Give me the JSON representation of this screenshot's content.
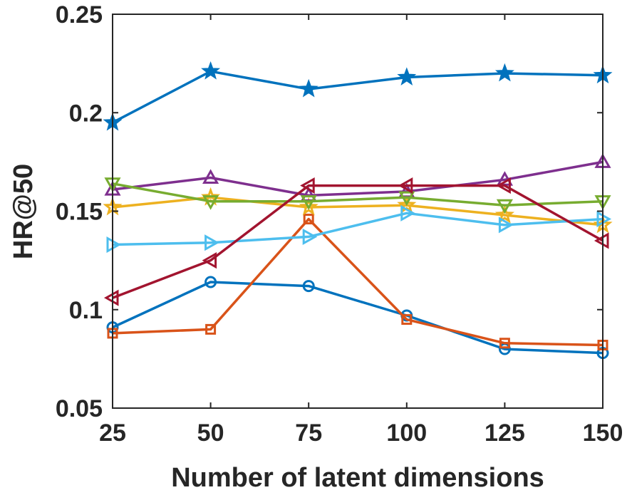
{
  "chart_data": {
    "type": "line",
    "title": "",
    "xlabel": "Number of latent dimensions",
    "ylabel": "HR@50",
    "x": [
      25,
      50,
      75,
      100,
      125,
      150
    ],
    "x_tick_labels": [
      "25",
      "50",
      "75",
      "100",
      "125",
      "150"
    ],
    "xlim": [
      25,
      150
    ],
    "ylim": [
      0.05,
      0.25
    ],
    "y_ticks": [
      0.05,
      0.1,
      0.15,
      0.2,
      0.25
    ],
    "y_tick_labels": [
      "0.05",
      "0.1",
      "0.15",
      "0.2",
      "0.25"
    ],
    "grid": false,
    "legend": "none",
    "series": [
      {
        "name": "series-circle",
        "color": "#0072BD",
        "marker": "circle",
        "values": [
          0.091,
          0.114,
          0.112,
          0.097,
          0.08,
          0.078
        ]
      },
      {
        "name": "series-square",
        "color": "#D95319",
        "marker": "square",
        "values": [
          0.088,
          0.09,
          0.146,
          0.095,
          0.083,
          0.082
        ]
      },
      {
        "name": "series-star",
        "color": "#EDB120",
        "marker": "star",
        "values": [
          0.152,
          0.157,
          0.152,
          0.153,
          0.148,
          0.143
        ]
      },
      {
        "name": "series-triangle-up",
        "color": "#7E2F8E",
        "marker": "triangle-up",
        "values": [
          0.161,
          0.167,
          0.158,
          0.16,
          0.166,
          0.175
        ]
      },
      {
        "name": "series-triangle-down",
        "color": "#77AC30",
        "marker": "triangle-down",
        "values": [
          0.164,
          0.155,
          0.155,
          0.157,
          0.153,
          0.155
        ]
      },
      {
        "name": "series-triangle-right",
        "color": "#4DBEEE",
        "marker": "triangle-right",
        "values": [
          0.133,
          0.134,
          0.137,
          0.149,
          0.143,
          0.146
        ]
      },
      {
        "name": "series-triangle-left",
        "color": "#A2142F",
        "marker": "triangle-left",
        "values": [
          0.106,
          0.125,
          0.163,
          0.163,
          0.163,
          0.135
        ]
      },
      {
        "name": "series-pentagram",
        "color": "#0072BD",
        "marker": "pentagram",
        "values": [
          0.195,
          0.221,
          0.212,
          0.218,
          0.22,
          0.219
        ]
      }
    ]
  }
}
